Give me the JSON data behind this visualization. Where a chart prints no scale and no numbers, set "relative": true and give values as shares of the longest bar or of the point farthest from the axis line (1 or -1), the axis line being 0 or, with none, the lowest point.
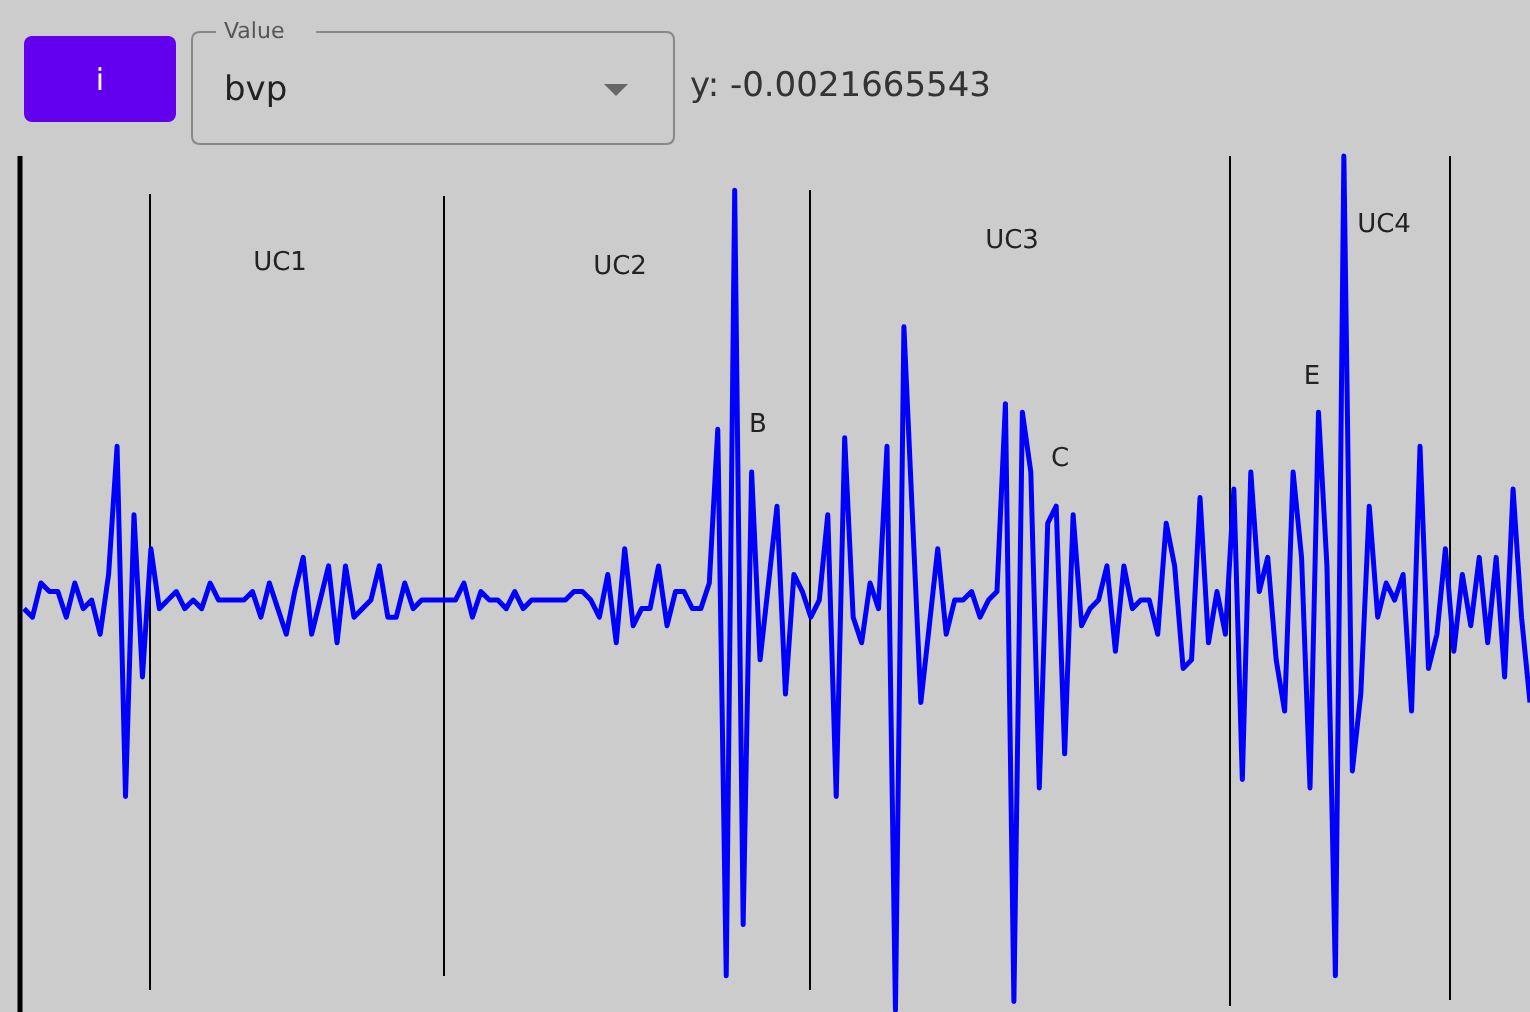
{
  "chart_data": {
    "type": "line",
    "relative": true,
    "categories": [
      null,
      null,
      null,
      null,
      null,
      null,
      null,
      null,
      null,
      null,
      null,
      null,
      null,
      null,
      null,
      null,
      null,
      null,
      null,
      null,
      null,
      null,
      null,
      null,
      null,
      null,
      null,
      null,
      null,
      null,
      null,
      null,
      null,
      null,
      null,
      null,
      null,
      null,
      null,
      null,
      null,
      null,
      null,
      null,
      null,
      null,
      null,
      null,
      null,
      null,
      null,
      null,
      null,
      null,
      null,
      null,
      null,
      null,
      null,
      null,
      null,
      null,
      null,
      null,
      null,
      null,
      null,
      null,
      null,
      null,
      null,
      null,
      null,
      null,
      null,
      null,
      null,
      null,
      null,
      null,
      null,
      null,
      null,
      null,
      null,
      null,
      null,
      null,
      null,
      null,
      null,
      null,
      null,
      null,
      null,
      null,
      null,
      null,
      null,
      null,
      null,
      null,
      null,
      null,
      null,
      null,
      null,
      null,
      null,
      null,
      null,
      null,
      null,
      null,
      null,
      null,
      null,
      null,
      null,
      null,
      null,
      null,
      null,
      null,
      null,
      null,
      null,
      null,
      null,
      null,
      null,
      null,
      null,
      null,
      null,
      null,
      null,
      null,
      null,
      null,
      null,
      null,
      null,
      null,
      null,
      null,
      null,
      null,
      null,
      null,
      null,
      null,
      null,
      null,
      null,
      null,
      null,
      null,
      null,
      null,
      null,
      null,
      null,
      null,
      null,
      null,
      null,
      null,
      null,
      null,
      null,
      null,
      null,
      null,
      null,
      null,
      null,
      null,
      null
    ],
    "series": [
      {
        "color": "#0000ff",
        "values": [
          0.47,
          0.46,
          0.5,
          0.49,
          0.49,
          0.46,
          0.5,
          0.47,
          0.48,
          0.44,
          0.51,
          0.66,
          0.25,
          0.58,
          0.39,
          0.54,
          0.47,
          0.48,
          0.49,
          0.47,
          0.48,
          0.47,
          0.5,
          0.48,
          0.48,
          0.48,
          0.48,
          0.49,
          0.46,
          0.5,
          0.47,
          0.44,
          0.49,
          0.53,
          0.44,
          0.48,
          0.52,
          0.43,
          0.52,
          0.46,
          0.47,
          0.48,
          0.52,
          0.46,
          0.46,
          0.5,
          0.47,
          0.48,
          0.48,
          0.48,
          0.48,
          0.48,
          0.5,
          0.46,
          0.49,
          0.48,
          0.48,
          0.47,
          0.49,
          0.47,
          0.48,
          0.48,
          0.48,
          0.48,
          0.48,
          0.49,
          0.49,
          0.48,
          0.46,
          0.51,
          0.43,
          0.54,
          0.45,
          0.47,
          0.47,
          0.52,
          0.45,
          0.49,
          0.49,
          0.47,
          0.47,
          0.5,
          0.68,
          0.04,
          0.96,
          0.1,
          0.63,
          0.41,
          0.5,
          0.59,
          0.37,
          0.51,
          0.49,
          0.46,
          0.48,
          0.58,
          0.25,
          0.67,
          0.46,
          0.43,
          0.5,
          0.47,
          0.66,
          0,
          0.8,
          0.58,
          0.36,
          0.45,
          0.54,
          0.44,
          0.48,
          0.48,
          0.49,
          0.46,
          0.48,
          0.49,
          0.71,
          0.01,
          0.7,
          0.63,
          0.26,
          0.57,
          0.59,
          0.3,
          0.58,
          0.45,
          0.47,
          0.48,
          0.52,
          0.42,
          0.52,
          0.47,
          0.48,
          0.48,
          0.44,
          0.57,
          0.52,
          0.4,
          0.41,
          0.6,
          0.43,
          0.49,
          0.44,
          0.61,
          0.27,
          0.63,
          0.49,
          0.53,
          0.41,
          0.35,
          0.63,
          0.53,
          0.26,
          0.7,
          0.52,
          0.04,
          1,
          0.28,
          0.37,
          0.59,
          0.46,
          0.5,
          0.48,
          0.51,
          0.35,
          0.66,
          0.4,
          0.44,
          0.54,
          0.42,
          0.51,
          0.45,
          0.53,
          0.43,
          0.53,
          0.39,
          0.61,
          0.46,
          0.36
        ]
      }
    ],
    "annotations": [
      "i",
      "Value",
      "bvp",
      "y: -0.0021665543",
      "UC1",
      "UC2",
      "UC3",
      "UC4",
      "B",
      "C",
      "E"
    ]
  }
}
